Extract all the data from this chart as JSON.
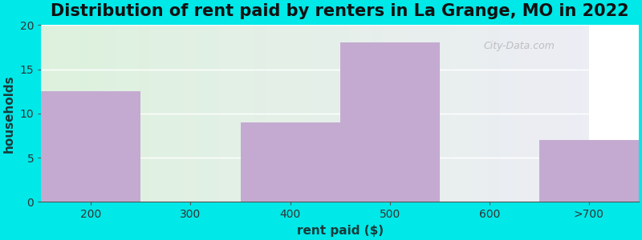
{
  "title": "Distribution of rent paid by renters in La Grange, MO in 2022",
  "xlabel": "rent paid ($)",
  "ylabel": "households",
  "categories": [
    "200",
    "300",
    "400",
    "500",
    "600",
    ">700"
  ],
  "values": [
    12.5,
    0,
    9,
    18,
    0,
    7
  ],
  "bar_color": "#c4aad0",
  "background_color": "#00e8e8",
  "plot_bg_left": "#daf0da",
  "plot_bg_right": "#e8eaf0",
  "ylim": [
    0,
    20
  ],
  "yticks": [
    0,
    5,
    10,
    15,
    20
  ],
  "title_fontsize": 15,
  "axis_label_fontsize": 11,
  "tick_fontsize": 10,
  "watermark": "City-Data.com",
  "tick_positions": [
    0,
    1,
    2,
    3,
    4,
    5,
    6
  ],
  "xlim": [
    0,
    6
  ]
}
